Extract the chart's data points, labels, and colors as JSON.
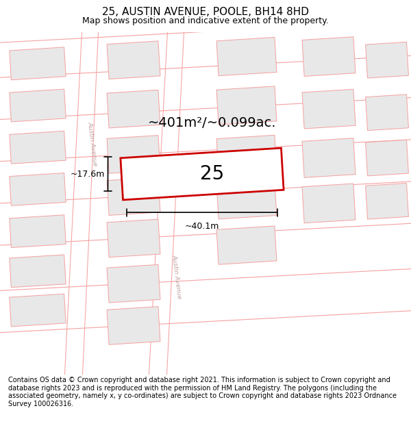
{
  "title": "25, AUSTIN AVENUE, POOLE, BH14 8HD",
  "subtitle": "Map shows position and indicative extent of the property.",
  "area_text": "~401m²/~0.099ac.",
  "property_number": "25",
  "width_label": "~40.1m",
  "height_label": "~17.6m",
  "footer": "Contains OS data © Crown copyright and database right 2021. This information is subject to Crown copyright and database rights 2023 and is reproduced with the permission of HM Land Registry. The polygons (including the associated geometry, namely x, y co-ordinates) are subject to Crown copyright and database rights 2023 Ordnance Survey 100026316.",
  "bg_color": "#ffffff",
  "building_fill": "#e8e8e8",
  "building_edge": "#f5a0a0",
  "road_line_color": "#f5a0a0",
  "property_edge": "#cc0000",
  "street_label_color": "#c0a0a0",
  "title_fontsize": 11,
  "subtitle_fontsize": 9,
  "footer_fontsize": 7.0,
  "area_fontsize": 14,
  "prop_num_fontsize": 20,
  "measure_fontsize": 9
}
